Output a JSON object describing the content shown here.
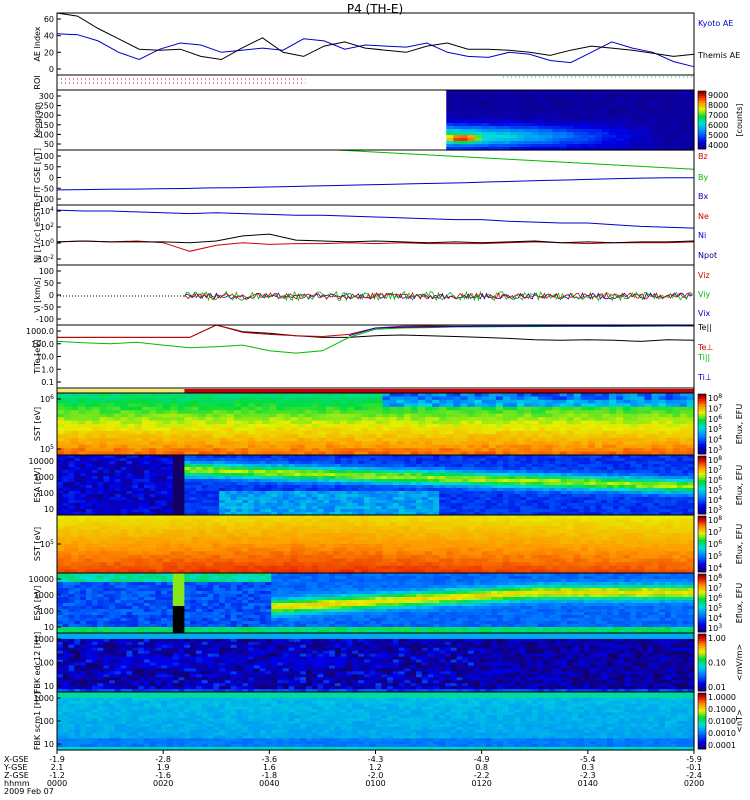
{
  "title": "P4 (TH-E)",
  "chart_data": [
    {
      "type": "line",
      "id": "ae",
      "ylabel": "AE Index",
      "ylim": [
        0,
        60
      ],
      "yticks": [
        "60",
        "40",
        "20",
        "0"
      ],
      "series": [
        {
          "name": "Kyoto AE",
          "color": "#0000cc",
          "values": [
            40,
            39,
            33,
            22,
            15,
            25,
            31,
            29,
            22,
            24,
            26,
            24,
            35,
            33,
            25,
            29,
            28,
            27,
            31,
            22,
            18,
            17,
            22,
            20,
            14,
            12,
            22,
            32,
            26,
            22,
            13,
            8
          ]
        },
        {
          "name": "Themis AE",
          "color": "#000000",
          "values": [
            60,
            57,
            45,
            35,
            25,
            24,
            25,
            18,
            15,
            26,
            36,
            22,
            18,
            28,
            32,
            26,
            24,
            22,
            28,
            31,
            25,
            25,
            24,
            22,
            19,
            24,
            28,
            26,
            24,
            21,
            18,
            20
          ]
        }
      ]
    },
    {
      "type": "flag",
      "id": "roi",
      "ylabel": "ROI"
    },
    {
      "type": "heatmap",
      "id": "keogram",
      "ylabel": "Keogram",
      "yticks": [
        "300",
        "250",
        "200",
        "150",
        "100",
        "50"
      ],
      "colorbar": {
        "label": "[counts]",
        "ticks": [
          "9000",
          "8000",
          "7000",
          "6000",
          "5000",
          "4000"
        ]
      }
    },
    {
      "type": "line",
      "id": "bfit",
      "ylabel": "B_FIT GSE [nT]",
      "ylim": [
        -100,
        100
      ],
      "yticks": [
        "100",
        "50",
        "0",
        "-50",
        "-100"
      ],
      "series": [
        {
          "name": "Bz",
          "color": "#cc0000",
          "values": []
        },
        {
          "name": "By",
          "color": "#00bb00",
          "values": [
            null,
            null,
            null,
            null,
            null,
            null,
            null,
            null,
            null,
            null,
            null,
            100,
            95,
            90,
            85,
            80,
            75,
            70,
            65,
            60,
            55,
            50,
            45,
            40,
            35,
            30
          ]
        },
        {
          "name": "Bx",
          "color": "#0000cc",
          "values": [
            -45,
            -44,
            -43,
            -42,
            -41,
            -40,
            -38,
            -37,
            -35,
            -33,
            -31,
            -29,
            -27,
            -25,
            -23,
            -21,
            -19,
            -16,
            -14,
            -11,
            -9,
            -6,
            -4,
            -2,
            -1,
            -1
          ]
        }
      ]
    },
    {
      "type": "line",
      "id": "density",
      "ylabel": "Ni [1/cc] eSST",
      "ylim": [
        -2.5,
        4.5
      ],
      "yscale": "log",
      "yticks": [
        "10^4",
        "10^2",
        "10^0",
        "10^-2"
      ],
      "series": [
        {
          "name": "Ne",
          "color": "#cc0000",
          "values": [
            0.2,
            0.3,
            0.2,
            0.3,
            0.1,
            -0.9,
            -0.2,
            0.1,
            -0.1,
            0,
            0,
            0.1,
            0,
            0.1,
            0,
            0,
            0,
            0.1,
            0.2,
            0.1,
            0,
            0.1,
            0.1,
            0.1,
            0.2
          ]
        },
        {
          "name": "Ni",
          "color": "#0000cc",
          "values": [
            3.9,
            3.8,
            3.8,
            3.7,
            3.6,
            3.5,
            3.6,
            3.5,
            3.4,
            3.3,
            3.3,
            3.2,
            3.1,
            3.0,
            2.9,
            2.8,
            2.8,
            2.6,
            2.5,
            2.4,
            2.4,
            2.2,
            2.0,
            1.9,
            1.8
          ]
        },
        {
          "name": "Npot",
          "color": "#000088",
          "values": []
        },
        {
          "name": "",
          "color": "#000000",
          "values": [
            0.2,
            0.3,
            0.2,
            0.2,
            0.2,
            0.1,
            0.3,
            0.9,
            1.1,
            0.4,
            0.3,
            0.2,
            0.3,
            0.2,
            0.1,
            0.2,
            0.1,
            0.2,
            0.3,
            0.1,
            0.2,
            0.1,
            0.2,
            0.2,
            0.3
          ]
        }
      ]
    },
    {
      "type": "line",
      "id": "velocity",
      "ylabel": "Vi [km/s]",
      "ylim": [
        -100,
        100
      ],
      "yticks": [
        "100",
        "50",
        "0",
        "-50",
        "-100"
      ],
      "series": [
        {
          "name": "Viz",
          "color": "#cc0000"
        },
        {
          "name": "Viy",
          "color": "#00bb00"
        },
        {
          "name": "Vix",
          "color": "#0000cc"
        }
      ]
    },
    {
      "type": "line",
      "id": "temperature",
      "ylabel": "TiTe [eV]",
      "ylim": [
        0.1,
        2000
      ],
      "yscale": "log",
      "yticks": [
        "1000.0",
        "100.0",
        "10.0",
        "1.0",
        "0.1"
      ],
      "series": [
        {
          "name": "Te||",
          "color": "#000000",
          "values": [
            300,
            300,
            300,
            300,
            300,
            300,
            2500,
            800,
            600,
            400,
            300,
            300,
            400,
            450,
            400,
            350,
            300,
            250,
            200,
            180,
            200,
            180,
            150,
            200,
            180
          ]
        },
        {
          "name": "Te⊥",
          "color": "#cc0000",
          "values": [
            300,
            300,
            300,
            300,
            300,
            300,
            2500,
            700,
            500,
            400,
            350,
            500,
            1500,
            2000,
            2100,
            2000,
            2000,
            2000,
            2000,
            2000,
            2100,
            2000,
            2100,
            2100,
            2100
          ]
        },
        {
          "name": "Ti||",
          "color": "#00bb00",
          "values": [
            150,
            120,
            100,
            130,
            80,
            50,
            60,
            80,
            30,
            20,
            30,
            300,
            1200,
            1500,
            1600,
            1800,
            1800,
            1900,
            1900,
            2000,
            2000,
            2000,
            2000,
            2100,
            2200
          ]
        },
        {
          "name": "Ti⊥",
          "color": "#0000cc",
          "values": [
            null,
            null,
            null,
            null,
            null,
            null,
            null,
            null,
            null,
            null,
            null,
            400,
            1500,
            1700,
            1800,
            1900,
            2000,
            2000,
            2100,
            2100,
            2100,
            2100,
            2200,
            2200,
            2200
          ]
        }
      ]
    },
    {
      "type": "heatmap",
      "id": "sst_e",
      "ylabel": "SST [eV]",
      "yticks": [
        "10^6",
        "10^5"
      ],
      "colorbar": {
        "label": "Eflux, EFU",
        "ticks": [
          "10^8",
          "10^7",
          "10^6",
          "10^5",
          "10^4",
          "10^3"
        ]
      }
    },
    {
      "type": "heatmap",
      "id": "esa_e",
      "ylabel": "ESA [eV]",
      "yticks": [
        "10000",
        "1000",
        "100",
        "10"
      ],
      "colorbar": {
        "label": "Eflux, EFU",
        "ticks": [
          "10^8",
          "10^7",
          "10^6",
          "10^5",
          "10^4",
          "10^3"
        ]
      }
    },
    {
      "type": "heatmap",
      "id": "sst_i",
      "ylabel": "SST [eV]",
      "yticks": [
        "10^5"
      ],
      "colorbar": {
        "label": "Eflux, EFU",
        "ticks": [
          "10^8",
          "10^7",
          "10^6",
          "10^5",
          "10^4"
        ]
      }
    },
    {
      "type": "heatmap",
      "id": "esa_i",
      "ylabel": "ESA [eV]",
      "yticks": [
        "10000",
        "1000",
        "100",
        "10"
      ],
      "colorbar": {
        "label": "Eflux, EFU",
        "ticks": [
          "10^8",
          "10^7",
          "10^6",
          "10^5",
          "10^4",
          "10^3"
        ]
      }
    },
    {
      "type": "heatmap",
      "id": "fbk_e",
      "ylabel": "FBK edc12 [Hz]",
      "yticks": [
        "1000",
        "100",
        "10"
      ],
      "colorbar": {
        "label": "<mV/m>",
        "ticks": [
          "1.00",
          "0.10",
          "0.01"
        ]
      }
    },
    {
      "type": "heatmap",
      "id": "fbk_b",
      "ylabel": "FBK scm1 [Hz]",
      "yticks": [
        "1000",
        "100",
        "10"
      ],
      "colorbar": {
        "label": "<nT>",
        "ticks": [
          "1.0000",
          "0.1000",
          "0.0100",
          "0.0010",
          "0.0001"
        ]
      }
    }
  ],
  "x_axis": {
    "row_labels": [
      "X-GSE",
      "Y-GSE",
      "Z-GSE",
      "hhmm",
      "2009 Feb 07"
    ],
    "ticks": [
      {
        "x": "-1.9",
        "y": "2.1",
        "z": "-1.2",
        "t": "0000"
      },
      {
        "x": "-2.8",
        "y": "1.9",
        "z": "-1.6",
        "t": "0020"
      },
      {
        "x": "-3.6",
        "y": "1.6",
        "z": "-1.8",
        "t": "0040"
      },
      {
        "x": "-4.3",
        "y": "1.2",
        "z": "-2.0",
        "t": "0100"
      },
      {
        "x": "-4.9",
        "y": "0.8",
        "z": "-2.2",
        "t": "0120"
      },
      {
        "x": "-5.4",
        "y": "0.3",
        "z": "-2.3",
        "t": "0140"
      },
      {
        "x": "-5.9",
        "y": "-0.1",
        "z": "-2.4",
        "t": "0200"
      }
    ]
  }
}
